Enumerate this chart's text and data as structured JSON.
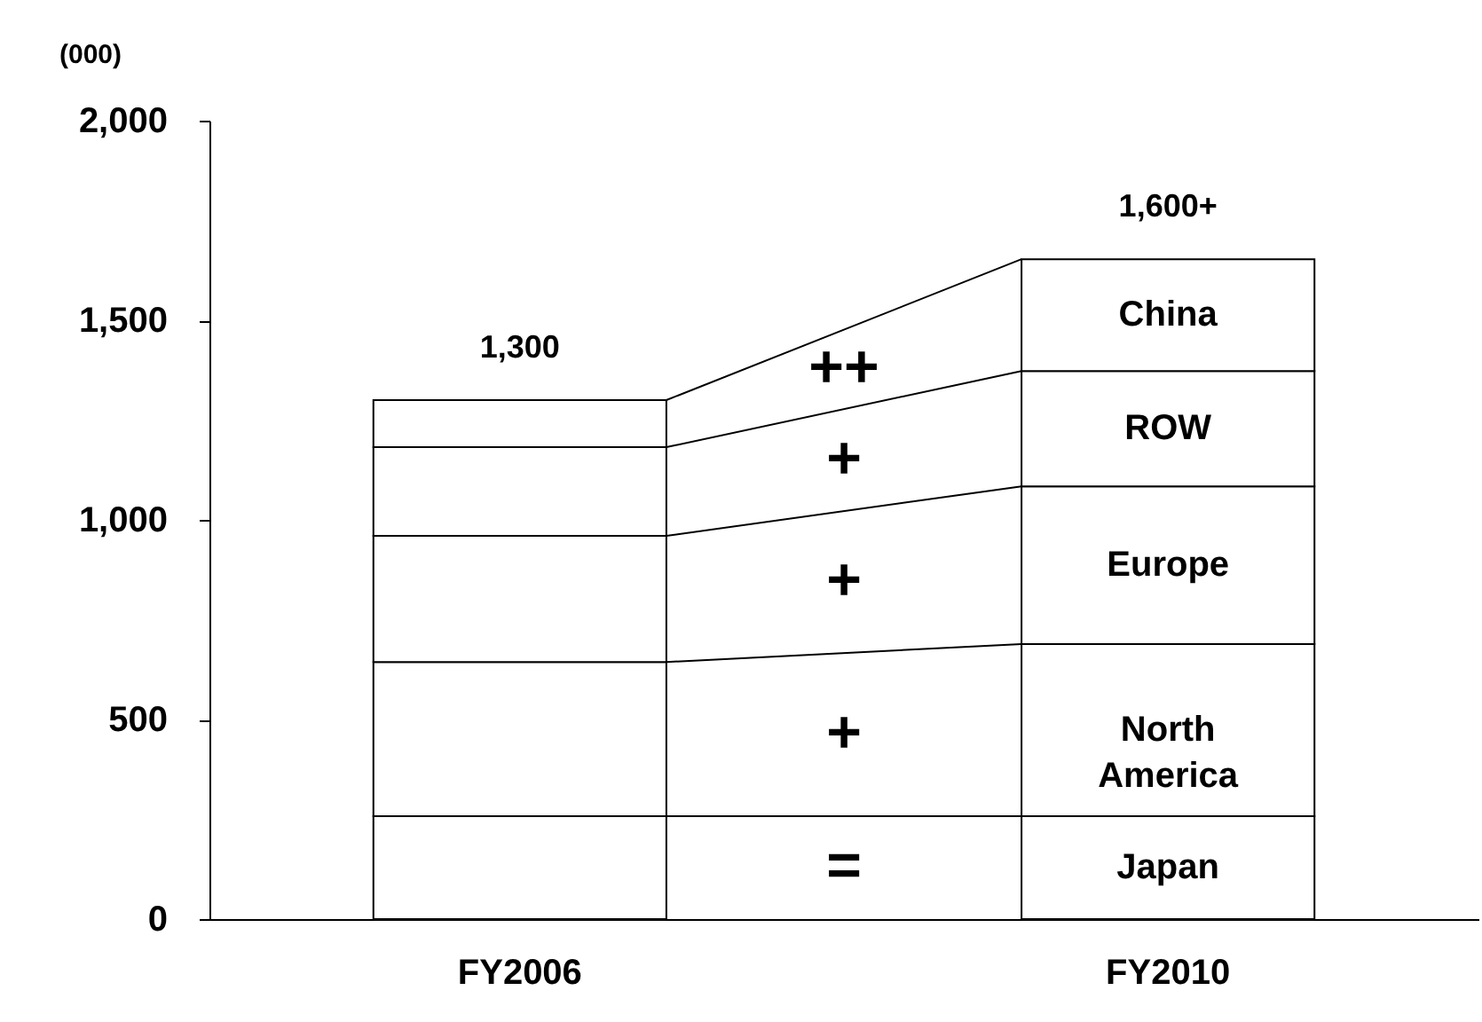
{
  "chart_data": {
    "type": "bar",
    "stacked": true,
    "ylabel": "(000)",
    "categories": [
      "FY2006",
      "FY2010"
    ],
    "series": [
      {
        "name": "Japan",
        "color": "#ffffff",
        "values": [
          258,
          258
        ]
      },
      {
        "name": "North America",
        "color": "#ffffff",
        "values": [
          386,
          431
        ]
      },
      {
        "name": "Europe",
        "color": "#ffffff",
        "values": [
          316,
          395
        ]
      },
      {
        "name": "ROW",
        "color": "#ffffff",
        "values": [
          222,
          289
        ]
      },
      {
        "name": "China",
        "color": "#ffffff",
        "values": [
          118,
          280
        ]
      }
    ],
    "totals": [
      "1,300",
      "1,600+"
    ],
    "annotations": [
      "++",
      "+",
      "+",
      "+",
      "="
    ],
    "ylim": [
      0,
      2000
    ],
    "yticks": [
      0,
      {
        "value": 500,
        "label": "500"
      },
      {
        "value": 1000,
        "label": "1,000"
      },
      {
        "value": 1500,
        "label": "1,500"
      },
      {
        "value": 2000,
        "label": "2,000"
      }
    ],
    "grid": false
  }
}
